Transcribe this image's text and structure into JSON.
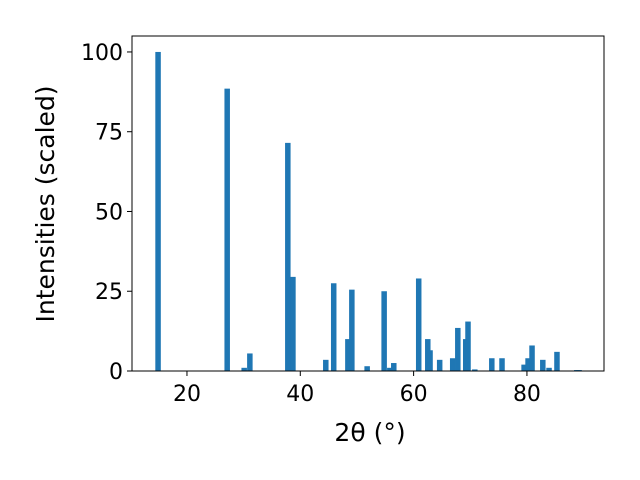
{
  "chart_data": {
    "type": "bar",
    "xlabel": "2θ (°)",
    "ylabel": "Intensities (scaled)",
    "x": [
      14.9,
      27.1,
      30.1,
      31.1,
      37.8,
      38.7,
      44.5,
      45.9,
      48.4,
      49.1,
      51.8,
      54.8,
      55.8,
      56.5,
      60.9,
      62.5,
      62.9,
      64.6,
      66.9,
      67.8,
      69.2,
      69.6,
      70.8,
      73.8,
      75.6,
      79.5,
      80.2,
      80.9,
      82.8,
      83.9,
      85.3,
      88.8,
      89.2
    ],
    "values": [
      100,
      88.5,
      1,
      5.5,
      71.5,
      29.5,
      3.5,
      27.5,
      10,
      25.5,
      1.5,
      25,
      1,
      2.5,
      29,
      10,
      6.5,
      3.5,
      4,
      13.5,
      10,
      15.5,
      0.5,
      4,
      4,
      2,
      4,
      8,
      3.5,
      1,
      6,
      0.3,
      0.3
    ],
    "color": "#1f77b4",
    "xlim": [
      10.3,
      93.6
    ],
    "xticks": [
      20,
      40,
      60,
      80
    ],
    "ylim": [
      0,
      105
    ],
    "yticks": [
      0,
      25,
      50,
      75,
      100
    ]
  }
}
